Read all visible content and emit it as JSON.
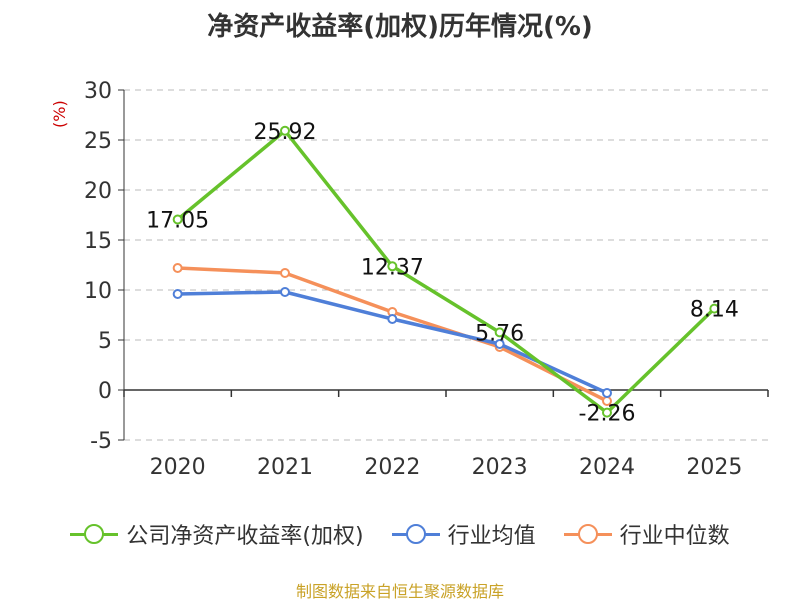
{
  "title": "净资产收益率(加权)历年情况(%)",
  "source": "制图数据来自恒生聚源数据库",
  "colors": {
    "company": "#66c22b",
    "industry_avg": "#4f7fd8",
    "industry_median": "#f5905a",
    "axis": "#333333",
    "grid": "#bbbbbb",
    "unit": "#cc0000"
  },
  "chart_data": {
    "type": "line",
    "ylabel": "(%)",
    "ylim": [
      -5,
      30
    ],
    "yticks": [
      "30",
      "25",
      "20",
      "15",
      "10",
      "5",
      "0",
      "-5"
    ],
    "ytick_values": [
      30,
      25,
      20,
      15,
      10,
      5,
      0,
      -5
    ],
    "categories": [
      "2020",
      "2021",
      "2022",
      "2023",
      "2024",
      "2025"
    ],
    "grid": "horizontal-dashed",
    "legend_position": "bottom",
    "series": [
      {
        "name": "公司净资产收益率(加权)",
        "key": "company",
        "values": [
          17.05,
          25.92,
          12.37,
          5.76,
          -2.26,
          8.14
        ],
        "labels": [
          "17.05",
          "25.92",
          "12.37",
          "5.76",
          "-2.26",
          "8.14"
        ]
      },
      {
        "name": "行业均值",
        "key": "industry_avg",
        "values": [
          9.6,
          9.8,
          7.1,
          4.6,
          -0.3,
          null
        ]
      },
      {
        "name": "行业中位数",
        "key": "industry_median",
        "values": [
          12.2,
          11.7,
          7.8,
          4.3,
          -1.1,
          null
        ]
      }
    ]
  }
}
